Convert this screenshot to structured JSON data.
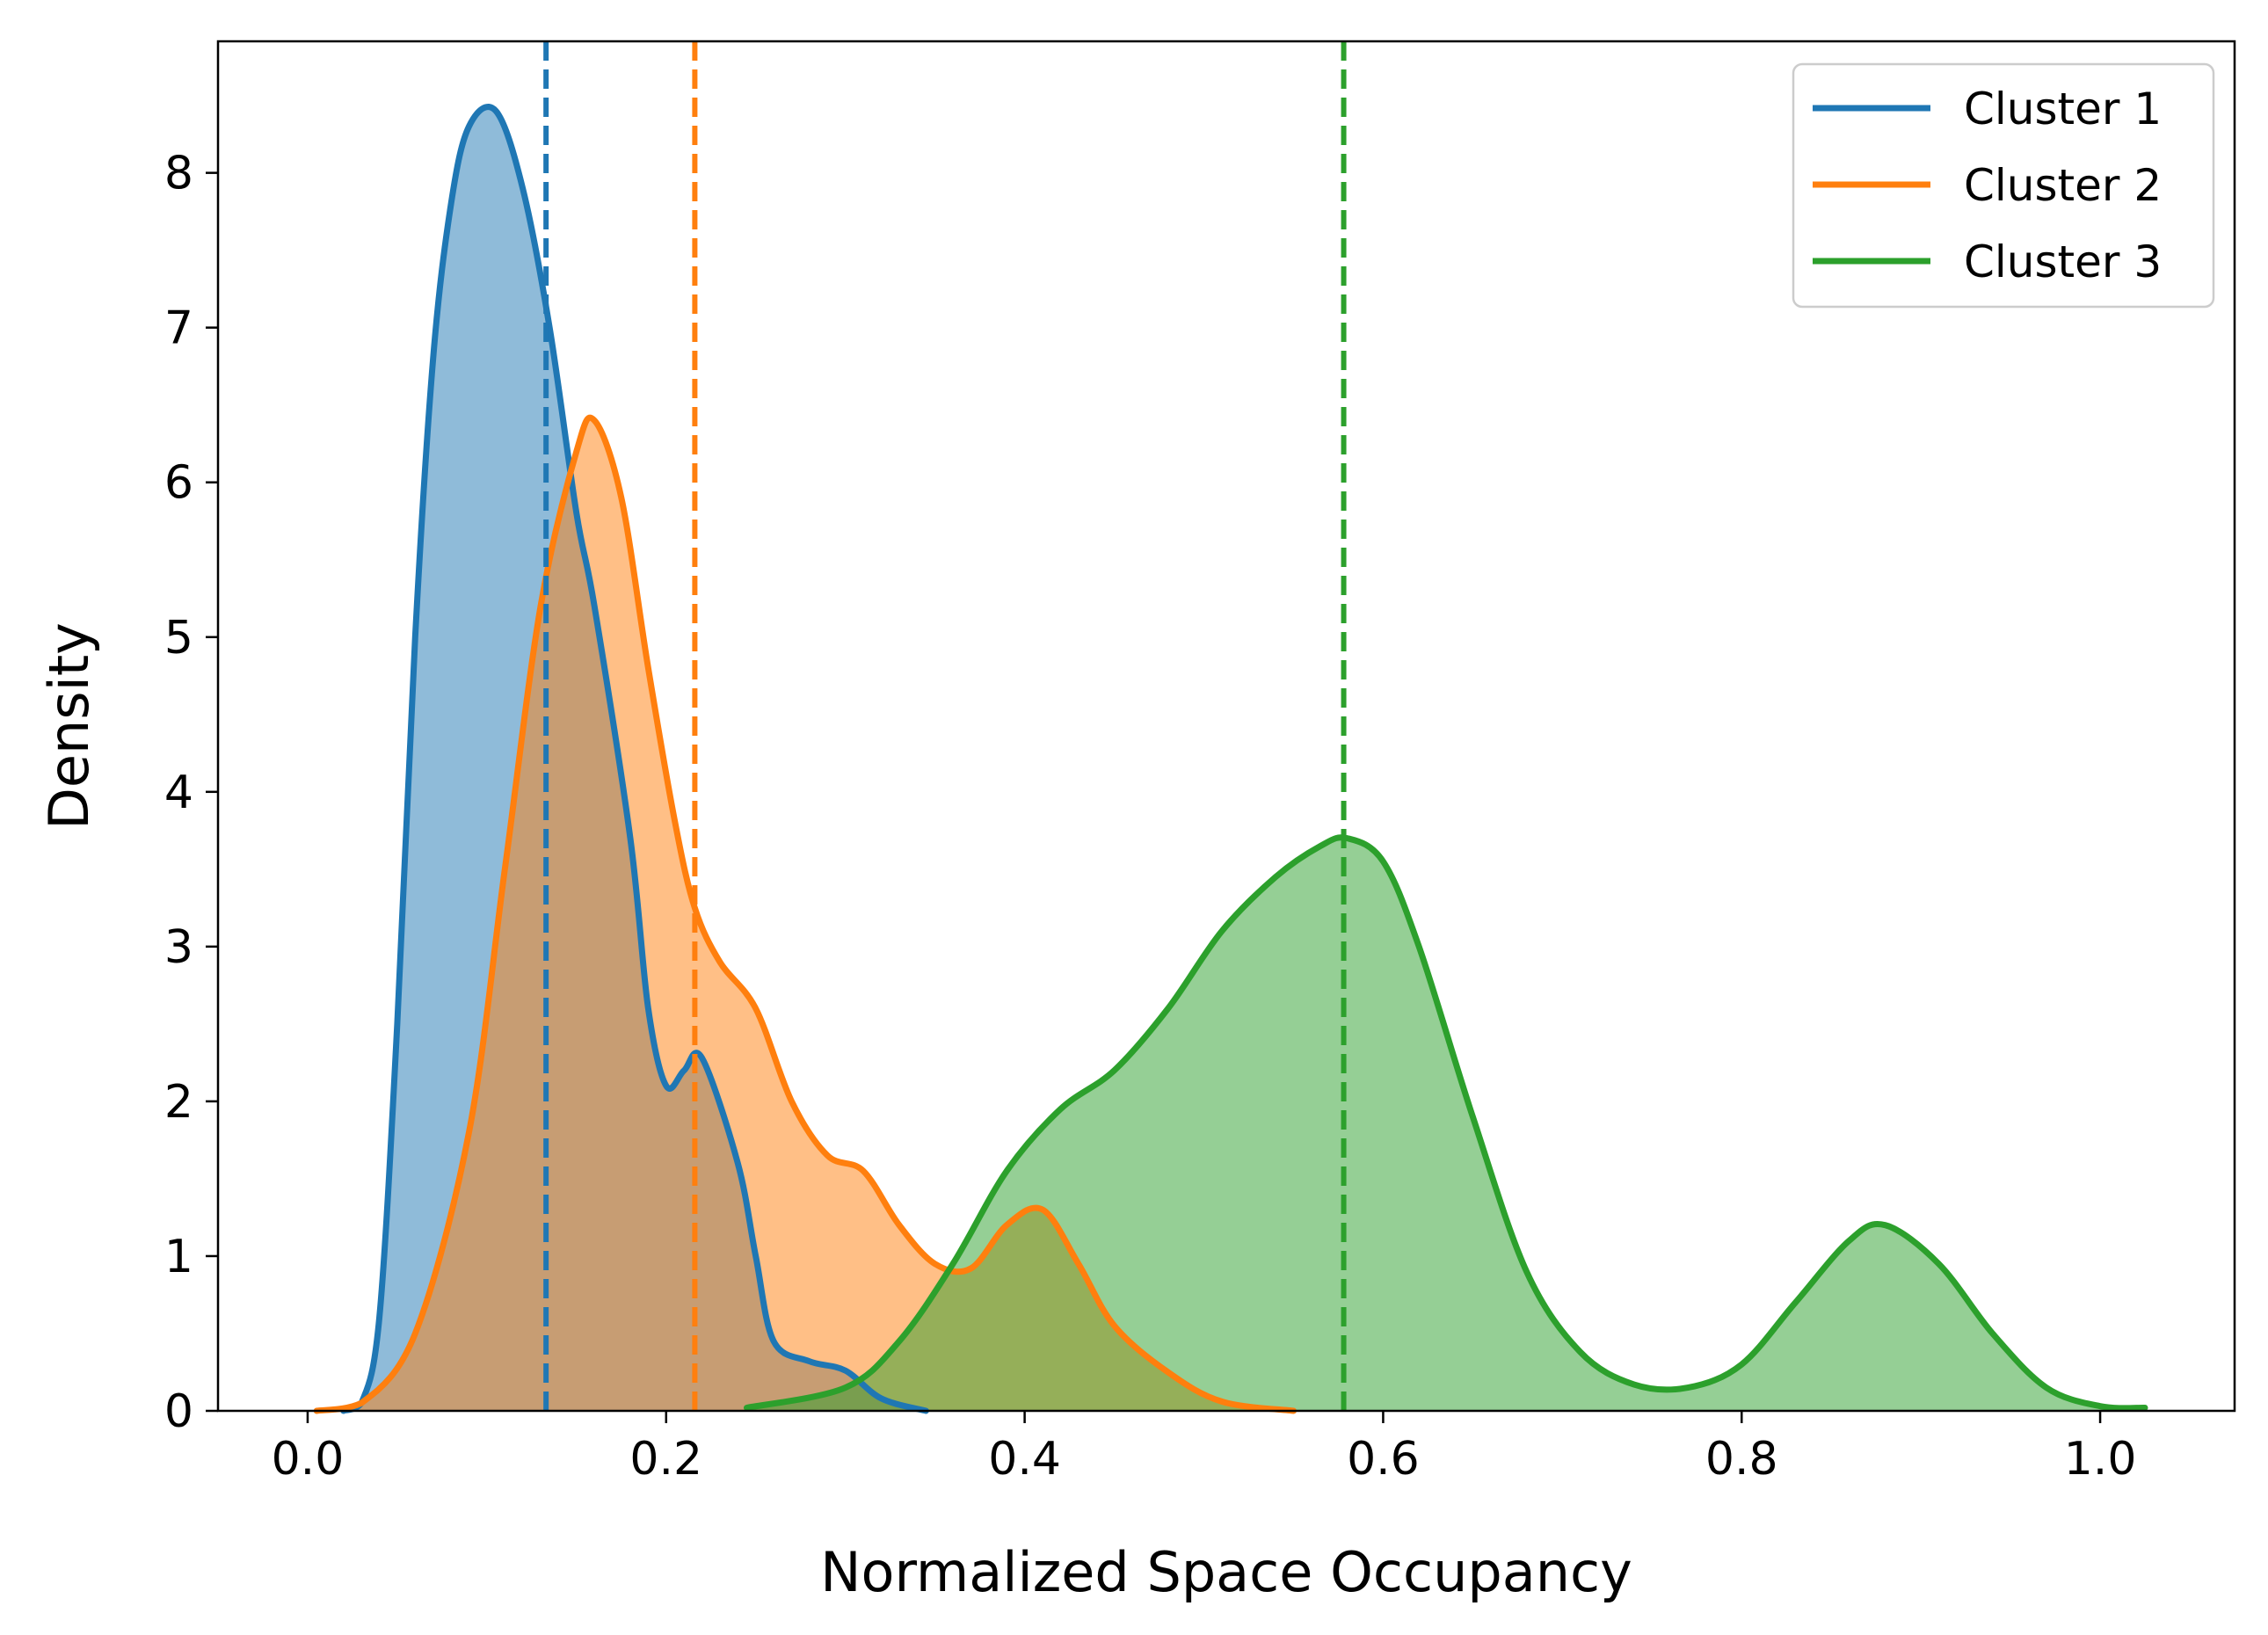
{
  "chart_data": {
    "type": "area",
    "title": "",
    "xlabel": "Normalized Space Occupancy",
    "ylabel": "Density",
    "xlim": [
      -0.05,
      1.075
    ],
    "ylim": [
      0,
      8.85
    ],
    "xticks": [
      0.0,
      0.2,
      0.4,
      0.6,
      0.8,
      1.0
    ],
    "xtick_labels": [
      "0.0",
      "0.2",
      "0.4",
      "0.6",
      "0.8",
      "1.0"
    ],
    "yticks": [
      0,
      1,
      2,
      3,
      4,
      5,
      6,
      7,
      8
    ],
    "ytick_labels": [
      "0",
      "1",
      "2",
      "3",
      "4",
      "5",
      "6",
      "7",
      "8"
    ],
    "grid": false,
    "legend_position": "top-right",
    "series": [
      {
        "name": "Cluster 1",
        "color": "#1f77b4",
        "mean": 0.133,
        "x": [
          0.02,
          0.03,
          0.04,
          0.05,
          0.06,
          0.07,
          0.08,
          0.09,
          0.105,
          0.12,
          0.135,
          0.15,
          0.16,
          0.18,
          0.19,
          0.2,
          0.21,
          0.22,
          0.24,
          0.25,
          0.26,
          0.28,
          0.3,
          0.32,
          0.345
        ],
        "y": [
          0.0,
          0.05,
          0.6,
          2.5,
          5.0,
          6.8,
          7.8,
          8.3,
          8.4,
          7.9,
          7.0,
          5.8,
          5.2,
          3.7,
          2.6,
          2.1,
          2.2,
          2.28,
          1.6,
          1.0,
          0.45,
          0.32,
          0.26,
          0.08,
          0.0
        ]
      },
      {
        "name": "Cluster 2",
        "color": "#ff7f0e",
        "mean": 0.216,
        "x": [
          0.005,
          0.03,
          0.06,
          0.09,
          0.11,
          0.13,
          0.15,
          0.16,
          0.175,
          0.19,
          0.205,
          0.216,
          0.23,
          0.25,
          0.27,
          0.29,
          0.31,
          0.33,
          0.35,
          0.37,
          0.39,
          0.41,
          0.43,
          0.45,
          0.48,
          0.51,
          0.55
        ],
        "y": [
          0.0,
          0.05,
          0.5,
          1.8,
          3.5,
          5.2,
          6.2,
          6.4,
          5.9,
          4.8,
          3.8,
          3.25,
          2.9,
          2.6,
          2.0,
          1.65,
          1.55,
          1.2,
          0.95,
          0.92,
          1.2,
          1.3,
          0.95,
          0.55,
          0.25,
          0.06,
          0.0
        ]
      },
      {
        "name": "Cluster 3",
        "color": "#2ca02c",
        "mean": 0.578,
        "x": [
          0.245,
          0.3,
          0.33,
          0.36,
          0.39,
          0.42,
          0.45,
          0.48,
          0.51,
          0.54,
          0.565,
          0.58,
          0.6,
          0.62,
          0.65,
          0.68,
          0.71,
          0.74,
          0.77,
          0.8,
          0.83,
          0.86,
          0.88,
          0.91,
          0.94,
          0.97,
          1.0,
          1.025
        ],
        "y": [
          0.02,
          0.15,
          0.45,
          0.95,
          1.55,
          1.95,
          2.2,
          2.6,
          3.1,
          3.45,
          3.65,
          3.7,
          3.55,
          3.0,
          1.9,
          0.9,
          0.38,
          0.17,
          0.15,
          0.3,
          0.7,
          1.1,
          1.2,
          0.95,
          0.5,
          0.15,
          0.03,
          0.02
        ]
      }
    ]
  }
}
